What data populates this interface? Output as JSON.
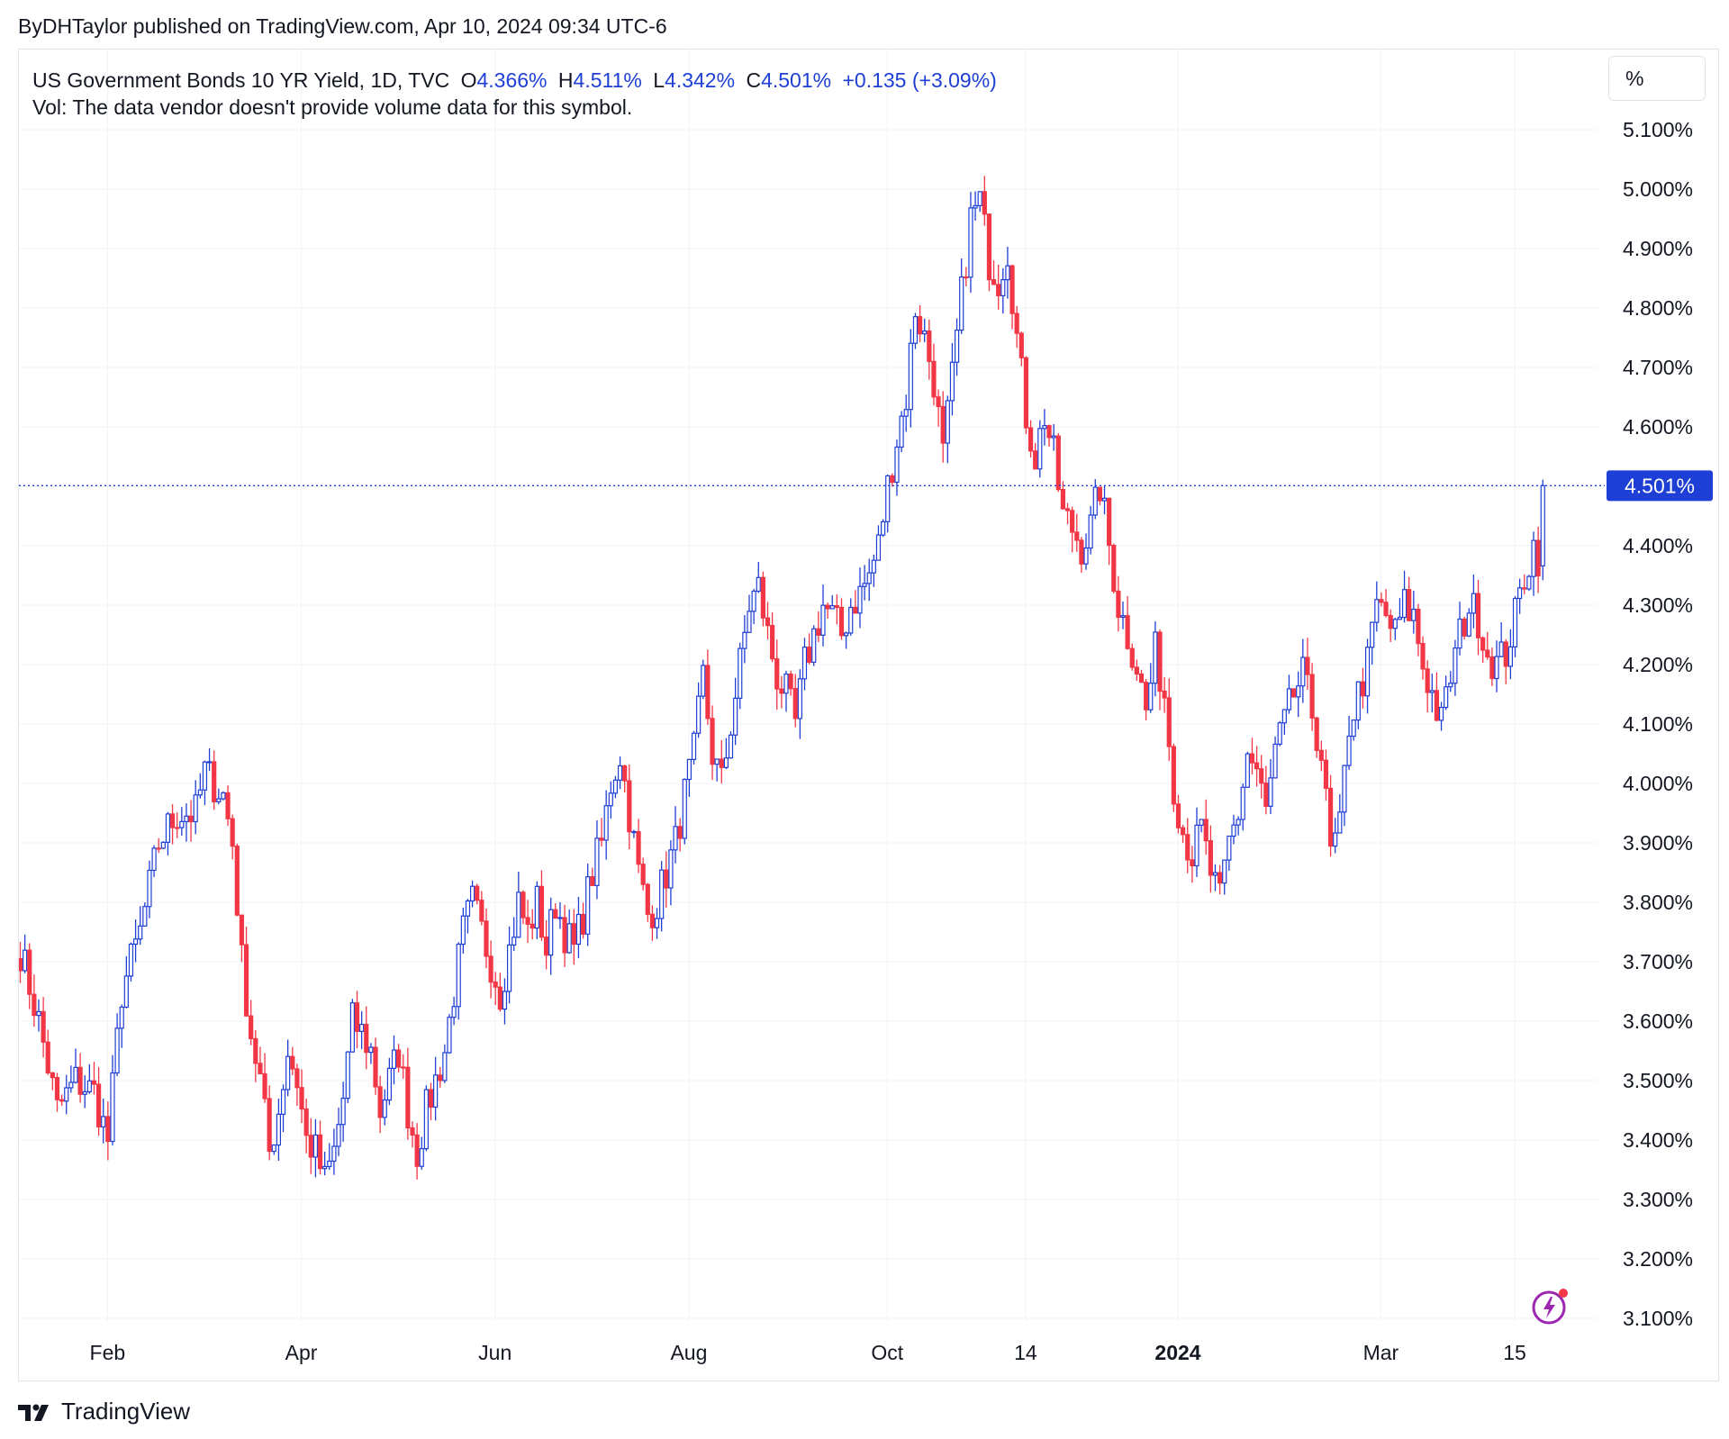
{
  "header": {
    "published_by": "ByDHTaylor published on TradingView.com, Apr 10, 2024 09:34 UTC-6"
  },
  "legend": {
    "symbol": "US Government Bonds 10 YR Yield, 1D, TVC",
    "open_label": "O",
    "open_value": "4.366%",
    "high_label": "H",
    "high_value": "4.511%",
    "low_label": "L",
    "low_value": "4.342%",
    "close_label": "C",
    "close_value": "4.501%",
    "change": "+0.135 (+3.09%)",
    "volume_note": "Vol: The data vendor doesn't provide volume data for this symbol."
  },
  "scale_button": {
    "label": "%"
  },
  "footer": {
    "brand": "TradingView"
  },
  "colors": {
    "up": "#1e3fd6",
    "down": "#f23645",
    "grid": "#f0f3fa",
    "price_line": "#1e3fd6",
    "price_label_bg": "#1e3fd6"
  },
  "chart_data": {
    "type": "candlestick",
    "title": "US Government Bonds 10 YR Yield, 1D, TVC",
    "period": "1D",
    "unit": "%",
    "ylim": [
      3.05,
      5.15
    ],
    "yticks": [
      3.1,
      3.2,
      3.3,
      3.4,
      3.5,
      3.6,
      3.7,
      3.8,
      3.9,
      4.0,
      4.1,
      4.2,
      4.3,
      4.4,
      4.5,
      4.6,
      4.7,
      4.8,
      4.9,
      5.0,
      5.1
    ],
    "ytick_labels": [
      "3.100%",
      "3.200%",
      "3.300%",
      "3.400%",
      "3.500%",
      "3.600%",
      "3.700%",
      "3.800%",
      "3.900%",
      "4.000%",
      "4.100%",
      "4.200%",
      "4.300%",
      "4.400%",
      "4.500%",
      "4.600%",
      "4.700%",
      "4.800%",
      "4.900%",
      "5.000%",
      "5.100%"
    ],
    "xlim_bar_index": [
      0,
      332
    ],
    "xticks": [
      {
        "label": "Feb",
        "bar": 19,
        "bold": false
      },
      {
        "label": "Apr",
        "bar": 61,
        "bold": false
      },
      {
        "label": "Jun",
        "bar": 103,
        "bold": false
      },
      {
        "label": "Aug",
        "bar": 145,
        "bold": false
      },
      {
        "label": "Oct",
        "bar": 188,
        "bold": false
      },
      {
        "label": "14",
        "bar": 218,
        "bold": false
      },
      {
        "label": "2024",
        "bar": 251,
        "bold": true
      },
      {
        "label": "Mar",
        "bar": 295,
        "bold": false
      },
      {
        "label": "15",
        "bar": 324,
        "bold": false
      }
    ],
    "last_price": 4.501,
    "last_price_label": "4.501%",
    "anchors": [
      [
        0,
        3.72
      ],
      [
        4,
        3.6
      ],
      [
        8,
        3.45
      ],
      [
        12,
        3.5
      ],
      [
        16,
        3.48
      ],
      [
        19,
        3.4
      ],
      [
        22,
        3.65
      ],
      [
        26,
        3.75
      ],
      [
        30,
        3.9
      ],
      [
        34,
        3.95
      ],
      [
        38,
        3.95
      ],
      [
        40,
        4.02
      ],
      [
        44,
        3.98
      ],
      [
        46,
        3.9
      ],
      [
        48,
        3.7
      ],
      [
        50,
        3.58
      ],
      [
        52,
        3.5
      ],
      [
        54,
        3.38
      ],
      [
        56,
        3.45
      ],
      [
        58,
        3.55
      ],
      [
        60,
        3.5
      ],
      [
        62,
        3.4
      ],
      [
        64,
        3.38
      ],
      [
        66,
        3.33
      ],
      [
        68,
        3.38
      ],
      [
        70,
        3.47
      ],
      [
        72,
        3.6
      ],
      [
        74,
        3.58
      ],
      [
        76,
        3.55
      ],
      [
        78,
        3.45
      ],
      [
        80,
        3.5
      ],
      [
        82,
        3.55
      ],
      [
        84,
        3.45
      ],
      [
        86,
        3.38
      ],
      [
        88,
        3.45
      ],
      [
        90,
        3.5
      ],
      [
        92,
        3.55
      ],
      [
        94,
        3.65
      ],
      [
        96,
        3.75
      ],
      [
        98,
        3.8
      ],
      [
        100,
        3.75
      ],
      [
        102,
        3.7
      ],
      [
        104,
        3.65
      ],
      [
        106,
        3.72
      ],
      [
        108,
        3.8
      ],
      [
        110,
        3.75
      ],
      [
        112,
        3.8
      ],
      [
        114,
        3.72
      ],
      [
        116,
        3.8
      ],
      [
        118,
        3.75
      ],
      [
        120,
        3.72
      ],
      [
        122,
        3.78
      ],
      [
        124,
        3.85
      ],
      [
        126,
        3.9
      ],
      [
        128,
        4.0
      ],
      [
        130,
        4.05
      ],
      [
        132,
        3.95
      ],
      [
        134,
        3.85
      ],
      [
        136,
        3.78
      ],
      [
        138,
        3.8
      ],
      [
        140,
        3.85
      ],
      [
        142,
        3.9
      ],
      [
        144,
        3.98
      ],
      [
        146,
        4.05
      ],
      [
        148,
        4.18
      ],
      [
        150,
        4.05
      ],
      [
        152,
        4.0
      ],
      [
        154,
        4.1
      ],
      [
        156,
        4.2
      ],
      [
        158,
        4.3
      ],
      [
        160,
        4.33
      ],
      [
        162,
        4.25
      ],
      [
        164,
        4.18
      ],
      [
        166,
        4.15
      ],
      [
        168,
        4.1
      ],
      [
        170,
        4.2
      ],
      [
        172,
        4.25
      ],
      [
        174,
        4.3
      ],
      [
        176,
        4.28
      ],
      [
        178,
        4.25
      ],
      [
        180,
        4.3
      ],
      [
        182,
        4.32
      ],
      [
        184,
        4.35
      ],
      [
        186,
        4.4
      ],
      [
        188,
        4.5
      ],
      [
        190,
        4.58
      ],
      [
        192,
        4.65
      ],
      [
        194,
        4.8
      ],
      [
        196,
        4.75
      ],
      [
        198,
        4.68
      ],
      [
        200,
        4.55
      ],
      [
        202,
        4.68
      ],
      [
        204,
        4.82
      ],
      [
        206,
        4.95
      ],
      [
        208,
        4.98
      ],
      [
        210,
        4.88
      ],
      [
        212,
        4.85
      ],
      [
        214,
        4.9
      ],
      [
        216,
        4.75
      ],
      [
        218,
        4.62
      ],
      [
        220,
        4.55
      ],
      [
        222,
        4.62
      ],
      [
        224,
        4.55
      ],
      [
        226,
        4.45
      ],
      [
        228,
        4.43
      ],
      [
        230,
        4.4
      ],
      [
        232,
        4.43
      ],
      [
        234,
        4.5
      ],
      [
        236,
        4.4
      ],
      [
        238,
        4.3
      ],
      [
        240,
        4.25
      ],
      [
        242,
        4.2
      ],
      [
        244,
        4.12
      ],
      [
        246,
        4.22
      ],
      [
        248,
        4.15
      ],
      [
        250,
        4.0
      ],
      [
        252,
        3.92
      ],
      [
        254,
        3.88
      ],
      [
        256,
        3.92
      ],
      [
        258,
        3.85
      ],
      [
        260,
        3.8
      ],
      [
        262,
        3.9
      ],
      [
        264,
        3.95
      ],
      [
        266,
        4.05
      ],
      [
        268,
        4.02
      ],
      [
        270,
        3.95
      ],
      [
        272,
        4.05
      ],
      [
        274,
        4.1
      ],
      [
        276,
        4.15
      ],
      [
        278,
        4.18
      ],
      [
        280,
        4.12
      ],
      [
        282,
        4.05
      ],
      [
        284,
        3.88
      ],
      [
        286,
        3.92
      ],
      [
        288,
        4.1
      ],
      [
        290,
        4.15
      ],
      [
        292,
        4.2
      ],
      [
        294,
        4.3
      ],
      [
        296,
        4.28
      ],
      [
        298,
        4.25
      ],
      [
        300,
        4.3
      ],
      [
        302,
        4.28
      ],
      [
        304,
        4.2
      ],
      [
        306,
        4.15
      ],
      [
        308,
        4.1
      ],
      [
        310,
        4.18
      ],
      [
        312,
        4.25
      ],
      [
        314,
        4.3
      ],
      [
        316,
        4.28
      ],
      [
        318,
        4.22
      ],
      [
        320,
        4.2
      ],
      [
        322,
        4.22
      ],
      [
        324,
        4.28
      ],
      [
        326,
        4.35
      ],
      [
        328,
        4.4
      ],
      [
        330,
        4.366
      ]
    ],
    "last_candle": {
      "open": 4.366,
      "high": 4.511,
      "low": 4.342,
      "close": 4.501
    }
  }
}
